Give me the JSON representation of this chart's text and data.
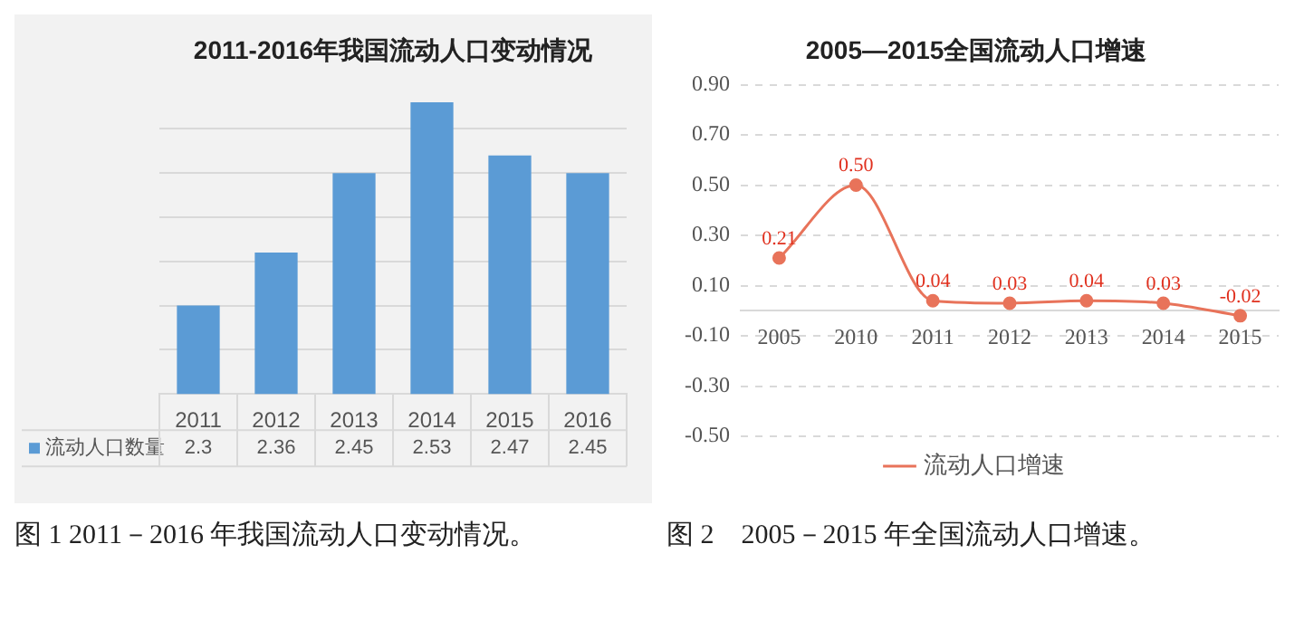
{
  "chart_data": [
    {
      "type": "bar",
      "title": "2011-2016年我国流动人口变动情况",
      "categories": [
        "2011",
        "2012",
        "2013",
        "2014",
        "2015",
        "2016"
      ],
      "series": [
        {
          "name": "流动人口数量",
          "color": "#5b9bd5",
          "values": [
            2.3,
            2.36,
            2.45,
            2.53,
            2.47,
            2.45
          ]
        }
      ],
      "yticks": [
        {
          "value": 2.2,
          "label": null
        },
        {
          "value": 2.25,
          "label": null
        },
        {
          "value": 2.3,
          "label": null
        },
        {
          "value": 2.35,
          "label": null
        },
        {
          "value": 2.4,
          "label": null
        },
        {
          "value": 2.45,
          "label": null
        },
        {
          "value": 2.5,
          "label": null
        }
      ],
      "grid": "y",
      "tick_labels": "x",
      "data_labels": true,
      "legend": "left",
      "annotations": [
        "图 1 2011－2016 年我国流动人口变动情况。"
      ]
    },
    {
      "type": "line",
      "title": "2005—2015全国流动人口增速",
      "categories": [
        "2005",
        "2010",
        "2011",
        "2012",
        "2013",
        "2014",
        "2015"
      ],
      "series": [
        {
          "name": "流动人口增速",
          "color": "#e8735a",
          "values": [
            0.21,
            0.5,
            0.04,
            0.03,
            0.04,
            0.03,
            -0.02
          ],
          "value_labels": [
            "0.21",
            "0.50",
            "0.04",
            "0.03",
            "0.04",
            "0.03",
            "-0.02"
          ]
        }
      ],
      "ylim": [
        -0.5,
        0.9
      ],
      "yticks": [
        {
          "value": -0.5,
          "label": "-0.50"
        },
        {
          "value": -0.3,
          "label": "-0.30"
        },
        {
          "value": -0.1,
          "label": "-0.10"
        },
        {
          "value": 0.1,
          "label": "0.10"
        },
        {
          "value": 0.3,
          "label": "0.30"
        },
        {
          "value": 0.5,
          "label": "0.50"
        },
        {
          "value": 0.7,
          "label": "0.70"
        },
        {
          "value": 0.9,
          "label": "0.90"
        }
      ],
      "grid": "y",
      "marker": "circle",
      "line_style": "solid",
      "legend": "bottom",
      "annotations": [
        "图 2　2005－2015 年全国流动人口增速。"
      ]
    }
  ]
}
